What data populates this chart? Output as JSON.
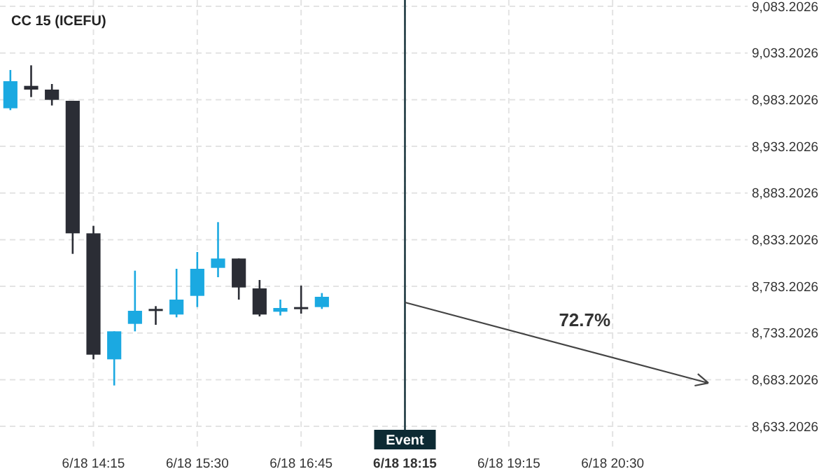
{
  "chart_data": {
    "type": "candlestick",
    "title": "CC 15 (ICEFU)",
    "categories": [
      null,
      null,
      null,
      null,
      "6/18 14:15",
      null,
      null,
      null,
      null,
      "6/18 15:30",
      null,
      null,
      null,
      null,
      "6/18 16:45",
      null,
      null,
      null,
      null,
      "6/18 18:15",
      null,
      null,
      null,
      null,
      "6/18 19:15",
      null,
      null,
      null,
      null,
      "6/18 20:30",
      null,
      null,
      null,
      null,
      null,
      null
    ],
    "ohlc": [
      [
        8974,
        9015,
        8972,
        9003
      ],
      [
        8998,
        9020,
        8986,
        8994
      ],
      [
        8994,
        9000,
        8977,
        8983
      ],
      [
        8982,
        8982,
        8818,
        8840
      ],
      [
        8840,
        8848,
        8705,
        8710
      ],
      [
        8705,
        8735,
        8677,
        8735
      ],
      [
        8743,
        8800,
        8735,
        8757
      ],
      [
        8759,
        8762,
        8742,
        8758
      ],
      [
        8753,
        8802,
        8750,
        8769
      ],
      [
        8773,
        8820,
        8761,
        8802
      ],
      [
        8803,
        8852,
        8793,
        8813
      ],
      [
        8813,
        8813,
        8769,
        8782
      ],
      [
        8781,
        8790,
        8751,
        8753
      ],
      [
        8756,
        8769,
        8752,
        8760
      ],
      [
        8761,
        8784,
        8754,
        8759
      ],
      [
        8761,
        8776,
        8759,
        8772
      ],
      null,
      null,
      null,
      null,
      null,
      null,
      null,
      null,
      null,
      null,
      null,
      null,
      null,
      null,
      null,
      null,
      null,
      null,
      null,
      null
    ],
    "colors": [
      "#1ba9e1",
      "#2b2d35",
      "#2b2d35",
      "#2b2d35",
      "#2b2d35",
      "#1ba9e1",
      "#1ba9e1",
      "#2b2d35",
      "#1ba9e1",
      "#1ba9e1",
      "#1ba9e1",
      "#2b2d35",
      "#2b2d35",
      "#1ba9e1",
      "#2b2d35",
      "#1ba9e1",
      null,
      null,
      null,
      null,
      null,
      null,
      null,
      null,
      null,
      null,
      null,
      null,
      null,
      null,
      null,
      null,
      null,
      null,
      null,
      null
    ],
    "ylim": [
      8610,
      9090
    ],
    "yticks": [
      {
        "value": 8633.2026,
        "label": "8,633.2026"
      },
      {
        "value": 8683.2026,
        "label": "8,683.2026"
      },
      {
        "value": 8733.2026,
        "label": "8,733.2026"
      },
      {
        "value": 8783.2026,
        "label": "8,783.2026"
      },
      {
        "value": 8833.2026,
        "label": "8,833.2026"
      },
      {
        "value": 8883.2026,
        "label": "8,883.2026"
      },
      {
        "value": 8933.2026,
        "label": "8,933.2026"
      },
      {
        "value": 8983.2026,
        "label": "8,983.2026"
      },
      {
        "value": 9033.2026,
        "label": "9,033.2026"
      },
      {
        "value": 9083.2026,
        "label": "9,083.2026"
      }
    ],
    "ref_lines": [
      {
        "axis": "x",
        "value": "6/18 18:15",
        "label": "Event",
        "color": "#0d2a33"
      }
    ],
    "annotations": [
      "72.7%"
    ],
    "grid": true
  }
}
